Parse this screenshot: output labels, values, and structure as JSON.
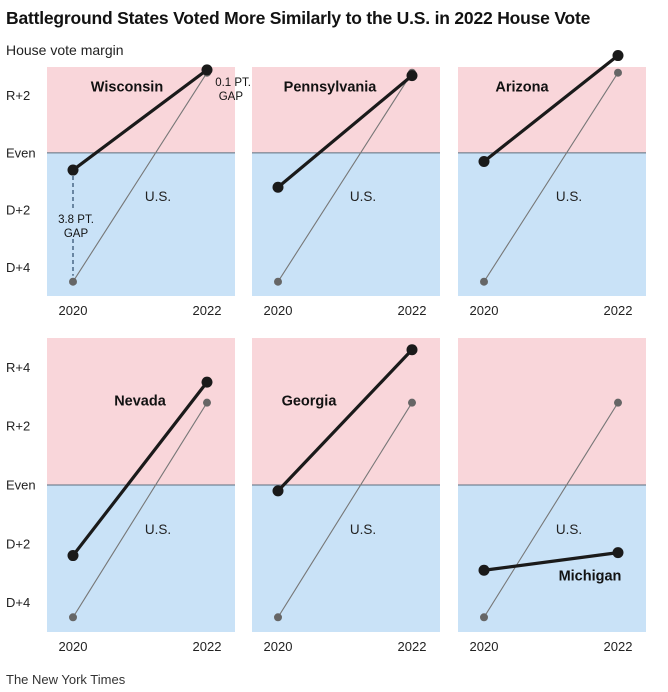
{
  "title": "Battleground States Voted More Similarly to the U.S. in 2022 House Vote",
  "subtitle": "House vote margin",
  "source": "The New York Times",
  "colors": {
    "rep_bg": "#f9d6da",
    "dem_bg": "#c9e2f7",
    "state_line": "#1a1a1a",
    "us_line": "#777777",
    "us_dot": "#666666"
  },
  "chart_data": {
    "type": "line",
    "unit": "House vote margin (positive = Republican)",
    "x": [
      "2020",
      "2022"
    ],
    "us_label": "U.S.",
    "us_values": [
      -4.5,
      2.8
    ],
    "y_tick_values": [
      4,
      2,
      0,
      -2,
      -4
    ],
    "y_tick_labels": [
      "R+4",
      "R+2",
      "Even",
      "D+2",
      "D+4"
    ],
    "rows": [
      {
        "ylim": [
          -5,
          3
        ],
        "ticks": [
          2,
          0,
          -2,
          -4
        ]
      },
      {
        "ylim": [
          -5,
          5
        ],
        "ticks": [
          4,
          2,
          0,
          -2,
          -4
        ]
      }
    ],
    "panels": [
      {
        "state": "Wisconsin",
        "values": [
          -0.6,
          2.9
        ],
        "row": 0,
        "col": 0,
        "annotations": {
          "gap_2022": [
            "0.1 PT.",
            "GAP"
          ],
          "gap_2020": [
            "3.8 PT.",
            "GAP"
          ]
        }
      },
      {
        "state": "Pennsylvania",
        "values": [
          -1.2,
          2.7
        ],
        "row": 0,
        "col": 1
      },
      {
        "state": "Arizona",
        "values": [
          -0.3,
          3.4
        ],
        "row": 0,
        "col": 2
      },
      {
        "state": "Nevada",
        "values": [
          -2.4,
          3.5
        ],
        "row": 1,
        "col": 0
      },
      {
        "state": "Georgia",
        "values": [
          -0.2,
          4.6
        ],
        "row": 1,
        "col": 1
      },
      {
        "state": "Michigan",
        "values": [
          -2.9,
          -2.3
        ],
        "row": 1,
        "col": 2
      }
    ]
  }
}
